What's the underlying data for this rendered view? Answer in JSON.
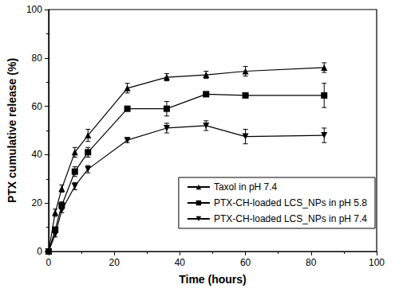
{
  "chart_data": {
    "type": "line",
    "x_label": "Time (hours)",
    "y_label": "PTX cumulative release (%)",
    "x": [
      0,
      2,
      4,
      8,
      12,
      24,
      36,
      48,
      60,
      84
    ],
    "series": [
      {
        "name": "Taxol in pH 7.4",
        "color": "#000000",
        "marker": "triangle-up",
        "line_style": "solid",
        "values": [
          0,
          16,
          26,
          41,
          48,
          67.5,
          72,
          73,
          74.5,
          76
        ],
        "errors": [
          0,
          1.5,
          1.5,
          2,
          2.5,
          2,
          1.5,
          1.5,
          2,
          2
        ]
      },
      {
        "name": "PTX-CH-loaded LCS_NPs in pH 5.8",
        "color": "#000000",
        "marker": "square",
        "line_style": "solid",
        "values": [
          0,
          9,
          19,
          33,
          41,
          59,
          59,
          65,
          64.5,
          64.5
        ],
        "errors": [
          0,
          1,
          1.5,
          2,
          2,
          1,
          3,
          1,
          1,
          5
        ]
      },
      {
        "name": "PTX-CH-loaded LCS_NPs in pH 7.4",
        "color": "#000000",
        "marker": "triangle-down",
        "line_style": "solid",
        "values": [
          0,
          7,
          17,
          27,
          34,
          46,
          51,
          52,
          47.5,
          48
        ],
        "errors": [
          0,
          1,
          1,
          1.5,
          1.5,
          1,
          2,
          2,
          3,
          3
        ]
      }
    ],
    "xlim": [
      0,
      100
    ],
    "xticks": [
      0,
      20,
      40,
      60,
      80,
      100
    ],
    "ylim": [
      0,
      100
    ],
    "yticks": [
      0,
      20,
      40,
      60,
      80,
      100
    ],
    "grid": false,
    "legend": "lower right"
  }
}
